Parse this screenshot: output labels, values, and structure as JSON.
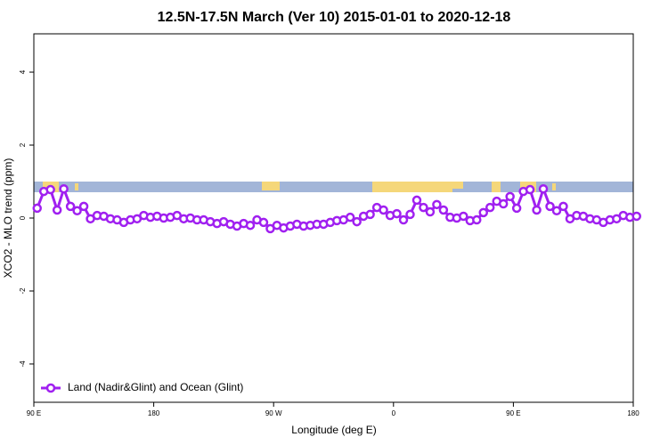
{
  "chart_data": {
    "type": "line",
    "title": "12.5N-17.5N March (Ver 10)   2015-01-01 to 2020-12-18",
    "x_label": "Longitude (deg E)",
    "y_label": "XCO2 - MLO trend (ppm)",
    "legend_position": "bottom-left",
    "xlim": [
      90,
      540
    ],
    "ylim": [
      -5.05,
      5.05
    ],
    "xticks": [
      {
        "value": 90,
        "label": "90 E"
      },
      {
        "value": 180,
        "label": "180"
      },
      {
        "value": 270,
        "label": "90 W"
      },
      {
        "value": 360,
        "label": "0"
      },
      {
        "value": 450,
        "label": "90 E"
      },
      {
        "value": 540,
        "label": "180"
      }
    ],
    "yticks": [
      -4,
      -2,
      0,
      2,
      4
    ],
    "x": [
      92.5,
      97.5,
      102.5,
      107.5,
      112.5,
      117.5,
      122.5,
      127.5,
      132.5,
      137.5,
      142.5,
      147.5,
      152.5,
      157.5,
      162.5,
      167.5,
      172.5,
      177.5,
      182.5,
      187.5,
      192.5,
      197.5,
      202.5,
      207.5,
      212.5,
      217.5,
      222.5,
      227.5,
      232.5,
      237.5,
      242.5,
      247.5,
      252.5,
      257.5,
      262.5,
      267.5,
      272.5,
      277.5,
      282.5,
      287.5,
      292.5,
      297.5,
      302.5,
      307.5,
      312.5,
      317.5,
      322.5,
      327.5,
      332.5,
      337.5,
      342.5,
      347.5,
      352.5,
      357.5,
      362.5,
      367.5,
      372.5,
      377.5,
      382.5,
      387.5,
      392.5,
      397.5,
      402.5,
      407.5,
      412.5,
      417.5,
      422.5,
      427.5,
      432.5,
      437.5,
      442.5,
      447.5,
      452.5,
      457.5,
      462.5,
      467.5,
      472.5,
      477.5,
      482.5,
      487.5,
      492.5,
      497.5,
      502.5,
      507.5,
      512.5,
      517.5,
      522.5,
      527.5,
      532.5,
      537.5,
      542.5
    ],
    "series": [
      {
        "name": "Land (Nadir&Glint) and Ocean (Glint)",
        "color": "#a020f0",
        "values": [
          0.27,
          0.73,
          0.78,
          0.22,
          0.8,
          0.32,
          0.2,
          0.32,
          -0.02,
          0.07,
          0.05,
          -0.02,
          -0.05,
          -0.12,
          -0.05,
          -0.02,
          0.07,
          0.02,
          0.05,
          0,
          0.02,
          0.07,
          -0.02,
          0,
          -0.05,
          -0.05,
          -0.1,
          -0.15,
          -0.1,
          -0.17,
          -0.22,
          -0.15,
          -0.2,
          -0.05,
          -0.12,
          -0.29,
          -0.2,
          -0.27,
          -0.22,
          -0.17,
          -0.22,
          -0.2,
          -0.17,
          -0.17,
          -0.12,
          -0.07,
          -0.05,
          0.02,
          -0.1,
          0.05,
          0.1,
          0.29,
          0.22,
          0.07,
          0.12,
          -0.05,
          0.1,
          0.49,
          0.29,
          0.17,
          0.37,
          0.22,
          0.02,
          0,
          0.05,
          -0.07,
          -0.05,
          0.15,
          0.29,
          0.46,
          0.39,
          0.59,
          0.27,
          0.73,
          0.78,
          0.22,
          0.8,
          0.32,
          0.2,
          0.32,
          -0.02,
          0.07,
          0.05,
          -0.02,
          -0.05,
          -0.12,
          -0.05,
          -0.02,
          0.07,
          0.02,
          0.05
        ]
      }
    ]
  }
}
